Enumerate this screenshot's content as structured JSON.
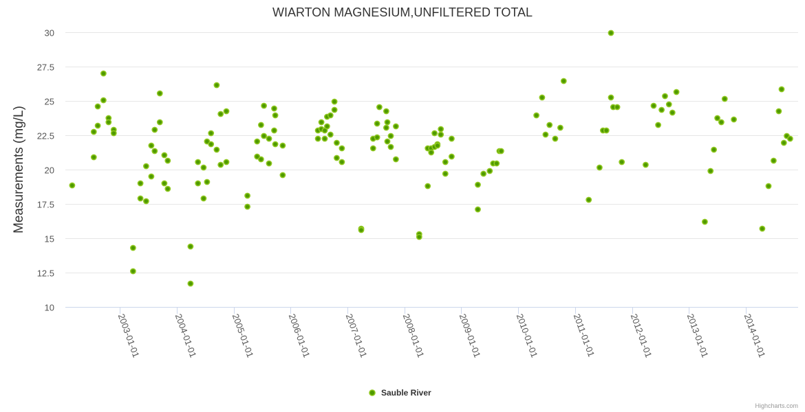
{
  "chart_data": {
    "type": "scatter",
    "title": "WIARTON MAGNESIUM,UNFILTERED TOTAL",
    "xlabel": "",
    "ylabel": "Measurements (mg/L)",
    "x_unit": "decimal year",
    "xlim": [
      2002.04,
      2014.92
    ],
    "ylim": [
      10,
      30
    ],
    "yticks": [
      10,
      12.5,
      15,
      17.5,
      20,
      22.5,
      25,
      27.5,
      30
    ],
    "ytick_labels": [
      "10",
      "12.5",
      "15",
      "17.5",
      "20",
      "22.5",
      "25",
      "27.5",
      "30"
    ],
    "xticks": [
      2003,
      2004,
      2005,
      2006,
      2007,
      2008,
      2009,
      2010,
      2011,
      2012,
      2013,
      2014
    ],
    "xtick_labels": [
      "2003-01-01",
      "2004-01-01",
      "2005-01-01",
      "2006-01-01",
      "2007-01-01",
      "2008-01-01",
      "2009-01-01",
      "2010-01-01",
      "2011-01-01",
      "2012-01-01",
      "2013-01-01",
      "2014-01-01"
    ],
    "grid": true,
    "legend_position": "bottom-center",
    "series": [
      {
        "name": "Sauble River",
        "color": "#4f9a00",
        "points": [
          [
            2002.16,
            18.85
          ],
          [
            2002.54,
            20.9
          ],
          [
            2002.54,
            22.75
          ],
          [
            2002.61,
            23.2
          ],
          [
            2002.61,
            24.6
          ],
          [
            2002.71,
            27.0
          ],
          [
            2002.71,
            25.05
          ],
          [
            2002.8,
            23.75
          ],
          [
            2002.8,
            23.45
          ],
          [
            2002.89,
            22.9
          ],
          [
            2002.89,
            22.65
          ],
          [
            2003.23,
            14.3
          ],
          [
            2003.23,
            12.6
          ],
          [
            2003.36,
            19.0
          ],
          [
            2003.36,
            17.9
          ],
          [
            2003.46,
            17.7
          ],
          [
            2003.46,
            20.25
          ],
          [
            2003.55,
            19.5
          ],
          [
            2003.55,
            21.75
          ],
          [
            2003.61,
            21.35
          ],
          [
            2003.61,
            22.9
          ],
          [
            2003.7,
            23.45
          ],
          [
            2003.7,
            25.55
          ],
          [
            2003.78,
            21.05
          ],
          [
            2003.84,
            20.65
          ],
          [
            2003.78,
            19.0
          ],
          [
            2003.84,
            18.6
          ],
          [
            2004.24,
            14.4
          ],
          [
            2004.24,
            11.7
          ],
          [
            2004.37,
            19.0
          ],
          [
            2004.37,
            20.55
          ],
          [
            2004.47,
            20.15
          ],
          [
            2004.47,
            17.9
          ],
          [
            2004.53,
            19.1
          ],
          [
            2004.53,
            22.05
          ],
          [
            2004.6,
            21.85
          ],
          [
            2004.6,
            22.65
          ],
          [
            2004.7,
            21.45
          ],
          [
            2004.7,
            26.15
          ],
          [
            2004.77,
            20.35
          ],
          [
            2004.87,
            20.55
          ],
          [
            2004.77,
            24.05
          ],
          [
            2004.87,
            24.25
          ],
          [
            2005.24,
            18.1
          ],
          [
            2005.24,
            17.3
          ],
          [
            2005.41,
            20.95
          ],
          [
            2005.48,
            20.75
          ],
          [
            2005.41,
            22.05
          ],
          [
            2005.48,
            23.25
          ],
          [
            2005.53,
            22.45
          ],
          [
            2005.53,
            24.65
          ],
          [
            2005.62,
            22.25
          ],
          [
            2005.62,
            20.45
          ],
          [
            2005.71,
            24.45
          ],
          [
            2005.73,
            23.95
          ],
          [
            2005.71,
            22.85
          ],
          [
            2005.73,
            21.85
          ],
          [
            2005.86,
            21.75
          ],
          [
            2005.86,
            19.6
          ],
          [
            2006.48,
            22.85
          ],
          [
            2006.48,
            22.25
          ],
          [
            2006.54,
            23.45
          ],
          [
            2006.54,
            22.95
          ],
          [
            2006.6,
            22.85
          ],
          [
            2006.6,
            22.25
          ],
          [
            2006.64,
            23.85
          ],
          [
            2006.64,
            23.15
          ],
          [
            2006.7,
            23.95
          ],
          [
            2006.7,
            22.55
          ],
          [
            2006.77,
            24.95
          ],
          [
            2006.77,
            24.35
          ],
          [
            2006.81,
            21.95
          ],
          [
            2006.9,
            21.55
          ],
          [
            2006.81,
            20.85
          ],
          [
            2006.9,
            20.55
          ],
          [
            2007.24,
            15.7
          ],
          [
            2007.24,
            15.6
          ],
          [
            2007.45,
            22.25
          ],
          [
            2007.45,
            21.55
          ],
          [
            2007.52,
            23.35
          ],
          [
            2007.52,
            22.35
          ],
          [
            2007.56,
            24.55
          ],
          [
            2007.68,
            24.25
          ],
          [
            2007.7,
            23.45
          ],
          [
            2007.68,
            23.05
          ],
          [
            2007.7,
            22.05
          ],
          [
            2007.76,
            22.45
          ],
          [
            2007.76,
            21.65
          ],
          [
            2007.85,
            23.15
          ],
          [
            2007.85,
            20.75
          ],
          [
            2008.26,
            15.3
          ],
          [
            2008.26,
            15.1
          ],
          [
            2008.41,
            21.55
          ],
          [
            2008.41,
            18.8
          ],
          [
            2008.47,
            21.55
          ],
          [
            2008.47,
            21.25
          ],
          [
            2008.53,
            21.65
          ],
          [
            2008.53,
            22.65
          ],
          [
            2008.58,
            21.85
          ],
          [
            2008.58,
            21.75
          ],
          [
            2008.64,
            22.95
          ],
          [
            2008.64,
            22.55
          ],
          [
            2008.72,
            20.55
          ],
          [
            2008.72,
            19.7
          ],
          [
            2008.83,
            22.25
          ],
          [
            2008.83,
            20.95
          ],
          [
            2009.29,
            18.9
          ],
          [
            2009.29,
            17.1
          ],
          [
            2009.39,
            19.7
          ],
          [
            2009.5,
            19.9
          ],
          [
            2009.56,
            20.45
          ],
          [
            2009.62,
            20.45
          ],
          [
            2009.67,
            21.35
          ],
          [
            2009.7,
            21.35
          ],
          [
            2010.32,
            23.95
          ],
          [
            2010.42,
            25.25
          ],
          [
            2010.55,
            23.25
          ],
          [
            2010.48,
            22.55
          ],
          [
            2010.74,
            23.05
          ],
          [
            2010.65,
            22.25
          ],
          [
            2010.8,
            26.45
          ],
          [
            2011.24,
            17.8
          ],
          [
            2011.43,
            20.15
          ],
          [
            2011.49,
            22.85
          ],
          [
            2011.55,
            22.85
          ],
          [
            2011.63,
            29.95
          ],
          [
            2011.63,
            25.25
          ],
          [
            2011.67,
            24.55
          ],
          [
            2011.74,
            24.55
          ],
          [
            2011.82,
            20.55
          ],
          [
            2012.24,
            20.35
          ],
          [
            2012.38,
            24.65
          ],
          [
            2012.46,
            23.25
          ],
          [
            2012.52,
            24.35
          ],
          [
            2012.58,
            25.35
          ],
          [
            2012.65,
            24.75
          ],
          [
            2012.71,
            24.15
          ],
          [
            2012.78,
            25.65
          ],
          [
            2013.28,
            16.2
          ],
          [
            2013.38,
            19.9
          ],
          [
            2013.44,
            21.45
          ],
          [
            2013.5,
            23.75
          ],
          [
            2013.57,
            23.45
          ],
          [
            2013.63,
            25.15
          ],
          [
            2013.79,
            23.65
          ],
          [
            2014.29,
            15.7
          ],
          [
            2014.4,
            18.8
          ],
          [
            2014.49,
            20.65
          ],
          [
            2014.58,
            24.25
          ],
          [
            2014.63,
            25.85
          ],
          [
            2014.67,
            21.95
          ],
          [
            2014.72,
            22.45
          ],
          [
            2014.78,
            22.25
          ]
        ]
      }
    ]
  },
  "credits": "Highcharts.com"
}
